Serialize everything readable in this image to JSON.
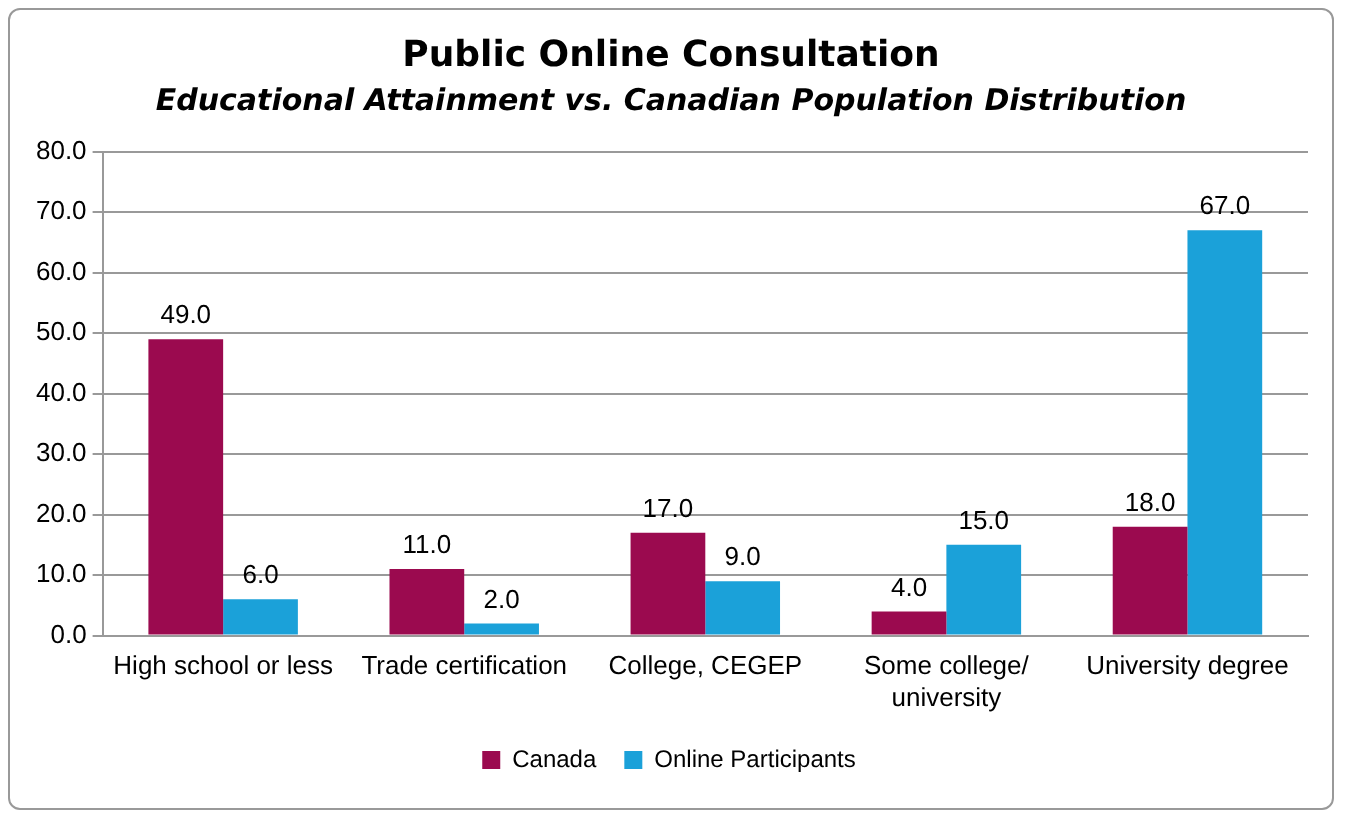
{
  "chart_data": {
    "type": "bar",
    "title": "Public Online Consultation",
    "subtitle": "Educational Attainment vs. Canadian Population Distribution",
    "categories": [
      "High school or less",
      "Trade certification",
      "College, CEGEP",
      "Some college/university",
      "University degree"
    ],
    "series": [
      {
        "name": "Canada",
        "color": "#9b0a4f",
        "values": [
          49,
          11,
          17,
          4,
          18
        ],
        "value_labels": [
          "49.0",
          "11.0",
          "17.0",
          "4.0",
          "18.0"
        ]
      },
      {
        "name": "Online Participants",
        "color": "#1ba1d9",
        "values": [
          6,
          2,
          9,
          15,
          67
        ],
        "value_labels": [
          "6.0",
          "2.0",
          "9.0",
          "15.0",
          "67.0"
        ]
      }
    ],
    "ylim": [
      0,
      80
    ],
    "yticks": [
      {
        "value": 0,
        "label": "0.0"
      },
      {
        "value": 10,
        "label": "10.0"
      },
      {
        "value": 20,
        "label": "20.0"
      },
      {
        "value": 30,
        "label": "30.0"
      },
      {
        "value": 40,
        "label": "40.0"
      },
      {
        "value": 50,
        "label": "50.0"
      },
      {
        "value": 60,
        "label": "60.0"
      },
      {
        "value": 70,
        "label": "70.0"
      },
      {
        "value": 80,
        "label": "80.0"
      }
    ],
    "grid": "y",
    "legend": "bottom"
  }
}
